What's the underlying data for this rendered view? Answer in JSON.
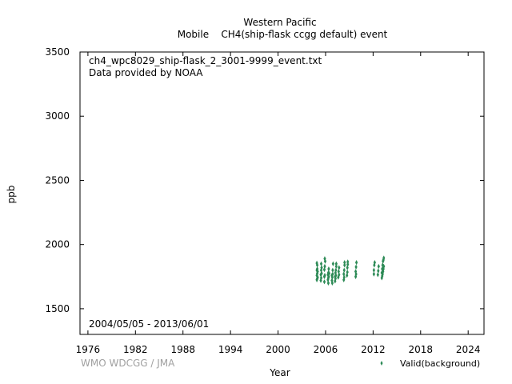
{
  "chart_data": {
    "type": "scatter",
    "title_line1": "Western Pacific",
    "title_line2": "Mobile    CH4(ship-flask ccgg default) event",
    "xlabel": "Year",
    "ylabel": "ppb",
    "xlim": [
      1975,
      2026
    ],
    "ylim": [
      1300,
      3500
    ],
    "xticks": [
      1976,
      1982,
      1988,
      1994,
      2000,
      2006,
      2012,
      2018,
      2024
    ],
    "yticks": [
      1500,
      2000,
      2500,
      3000,
      3500
    ],
    "grid": false,
    "annotations": {
      "file": "ch4_wpc8029_ship-flask_2_3001-9999_event.txt",
      "provider": "Data provided by NOAA",
      "period": "2004/05/05 - 2013/06/01",
      "credit": "WMO WDCGG / JMA"
    },
    "legend": {
      "label": "Valid(background)",
      "position": "bottom-right",
      "color": "#2e8b57"
    },
    "series": [
      {
        "name": "Valid(background)",
        "color": "#2e8b57",
        "marker": "diamond",
        "x": [
          2004.9,
          2004.9,
          2004.9,
          2004.9,
          2004.95,
          2004.95,
          2004.95,
          2004.95,
          2005.0,
          2005.0,
          2005.4,
          2005.4,
          2005.45,
          2005.45,
          2005.45,
          2005.5,
          2005.5,
          2005.85,
          2005.85,
          2005.85,
          2005.9,
          2005.9,
          2005.9,
          2005.95,
          2006.3,
          2006.3,
          2006.35,
          2006.35,
          2006.35,
          2006.4,
          2006.4,
          2006.45,
          2006.8,
          2006.8,
          2006.85,
          2006.85,
          2006.9,
          2006.9,
          2006.95,
          2007.2,
          2007.2,
          2007.25,
          2007.25,
          2007.3,
          2007.3,
          2007.35,
          2007.35,
          2007.6,
          2007.65,
          2007.7,
          2007.7,
          2008.3,
          2008.3,
          2008.35,
          2008.35,
          2008.4,
          2008.4,
          2008.7,
          2008.75,
          2008.75,
          2008.8,
          2008.8,
          2009.8,
          2009.8,
          2009.85,
          2009.85,
          2009.9,
          2012.1,
          2012.1,
          2012.15,
          2012.2,
          2012.6,
          2012.65,
          2012.7,
          2013.1,
          2013.1,
          2013.15,
          2013.15,
          2013.2,
          2013.2,
          2013.25,
          2013.25,
          2013.3,
          2013.3,
          2013.35,
          2013.35
        ],
        "y": [
          1725,
          1760,
          1800,
          1855,
          1735,
          1775,
          1810,
          1840,
          1745,
          1790,
          1720,
          1765,
          1740,
          1800,
          1850,
          1775,
          1820,
          1710,
          1750,
          1805,
          1760,
          1830,
          1890,
          1870,
          1725,
          1765,
          1700,
          1740,
          1780,
          1750,
          1810,
          1775,
          1720,
          1760,
          1700,
          1745,
          1770,
          1800,
          1850,
          1715,
          1750,
          1735,
          1780,
          1760,
          1800,
          1830,
          1850,
          1745,
          1790,
          1765,
          1820,
          1725,
          1770,
          1745,
          1800,
          1840,
          1860,
          1760,
          1785,
          1820,
          1845,
          1865,
          1750,
          1790,
          1770,
          1825,
          1860,
          1770,
          1800,
          1840,
          1860,
          1765,
          1795,
          1830,
          1740,
          1780,
          1755,
          1810,
          1770,
          1840,
          1790,
          1870,
          1810,
          1880,
          1830,
          1895
        ]
      }
    ]
  }
}
